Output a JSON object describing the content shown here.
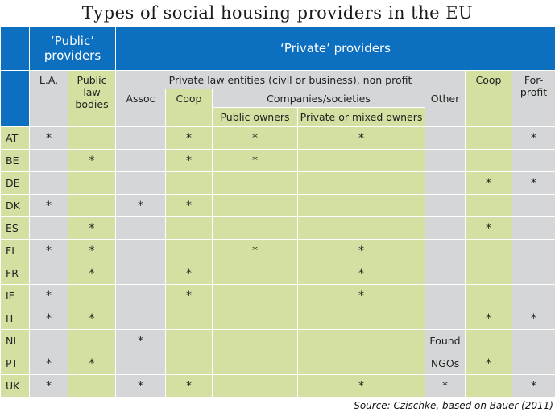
{
  "title": "Types of social housing providers in the EU",
  "source": "Source: Czischke, based on Bauer (2011)",
  "colors": {
    "header_blue": "#0d6fbf",
    "green": "#d3e0a2",
    "grey": "#d4d6d7"
  },
  "headers": {
    "public_providers": "‘Public’ providers",
    "private_providers": "‘Private’ providers",
    "la": "L.A.",
    "public_law_bodies": "Public law bodies",
    "private_law_entities": "Private law entities (civil or business), non profit",
    "coop_top": "Coop",
    "for_profit": "For-profit",
    "assoc": "Assoc",
    "coop": "Coop",
    "companies_societies": "Companies/societies",
    "other": "Other",
    "public_owners": "Public owners",
    "private_mixed_owners": "Private or mixed owners"
  },
  "rows": [
    {
      "country": "AT",
      "cells": [
        "*",
        "",
        "",
        "*",
        "*",
        "*",
        "",
        "",
        "*"
      ]
    },
    {
      "country": "BE",
      "cells": [
        "",
        "*",
        "",
        "*",
        "*",
        "",
        "",
        "",
        ""
      ]
    },
    {
      "country": "DE",
      "cells": [
        "",
        "",
        "",
        "",
        "",
        "",
        "",
        "*",
        "*"
      ]
    },
    {
      "country": "DK",
      "cells": [
        "*",
        "",
        "*",
        "*",
        "",
        "",
        "",
        "",
        ""
      ]
    },
    {
      "country": "ES",
      "cells": [
        "",
        "*",
        "",
        "",
        "",
        "",
        "",
        "*",
        ""
      ]
    },
    {
      "country": "FI",
      "cells": [
        "*",
        "*",
        "",
        "",
        "*",
        "*",
        "",
        "",
        ""
      ]
    },
    {
      "country": "FR",
      "cells": [
        "",
        "*",
        "",
        "*",
        "",
        "*",
        "",
        "",
        ""
      ]
    },
    {
      "country": "IE",
      "cells": [
        "*",
        "",
        "",
        "*",
        "",
        "*",
        "",
        "",
        ""
      ]
    },
    {
      "country": "IT",
      "cells": [
        "*",
        "*",
        "",
        "",
        "",
        "",
        "",
        "*",
        "*"
      ]
    },
    {
      "country": "NL",
      "cells": [
        "",
        "",
        "*",
        "",
        "",
        "",
        "Found",
        "",
        ""
      ]
    },
    {
      "country": "PT",
      "cells": [
        "*",
        "*",
        "",
        "",
        "",
        "",
        "NGOs",
        "*",
        ""
      ]
    },
    {
      "country": "UK",
      "cells": [
        "*",
        "",
        "*",
        "*",
        "",
        "*",
        "*",
        "",
        "*"
      ]
    }
  ]
}
